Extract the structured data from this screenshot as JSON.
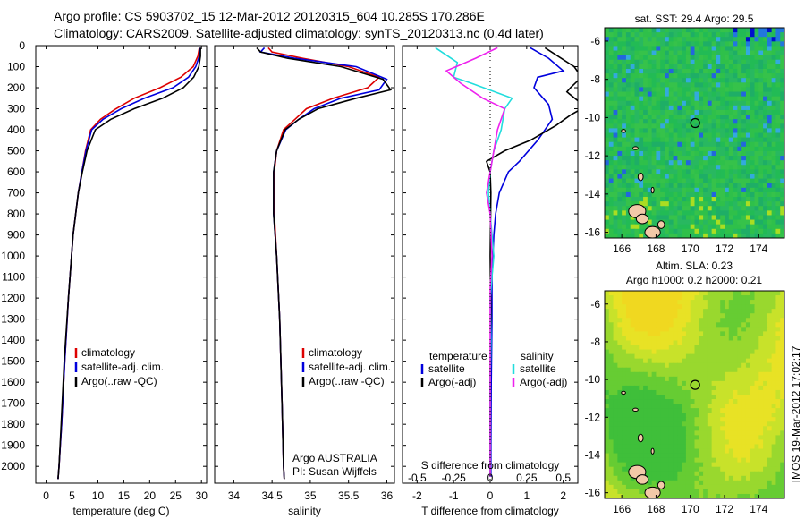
{
  "header": {
    "line1": "Argo profile: CS 5903702_15 12-Mar-2012 20120315_604 10.285S 170.286E",
    "line2": "Climatology: CARS2009. Satellite-adjusted climatology: synTS_20120313.nc (0.4d later)"
  },
  "colors": {
    "climatology": "#dd0000",
    "satellite": "#0000dd",
    "argo": "#000000",
    "salinity_satellite": "#22dddd",
    "salinity_argo": "#ee22ee"
  },
  "depth_axis": {
    "ylim": [
      0,
      2080
    ],
    "ticks": [
      "0",
      "100",
      "200",
      "300",
      "400",
      "500",
      "600",
      "700",
      "800",
      "900",
      "1000",
      "1100",
      "1200",
      "1300",
      "1400",
      "1500",
      "1600",
      "1700",
      "1800",
      "1900",
      "2000"
    ]
  },
  "chart_data": [
    {
      "type": "line",
      "name": "temperature",
      "xlabel": "temperature (deg C)",
      "xlim": [
        -2,
        31
      ],
      "xticks": [
        0,
        5,
        10,
        15,
        20,
        25,
        30
      ],
      "ylim": [
        0,
        2080
      ],
      "legend_position": "bottom-center",
      "series": [
        {
          "name": "climatology",
          "color_key": "climatology",
          "x": [
            29.6,
            29.3,
            28.4,
            26.0,
            22.0,
            17.0,
            13.5,
            10.5,
            8.6,
            7.6,
            6.9,
            6.2,
            5.2,
            4.3,
            3.6,
            3.0,
            2.5,
            2.3
          ],
          "y": [
            10,
            50,
            100,
            150,
            200,
            250,
            300,
            350,
            400,
            500,
            600,
            700,
            900,
            1200,
            1500,
            1800,
            2000,
            2060
          ]
        },
        {
          "name": "satellite-adj. clim.",
          "color_key": "satellite",
          "x": [
            29.8,
            29.6,
            28.9,
            27.5,
            24.5,
            19.0,
            14.5,
            11.0,
            8.8,
            7.7,
            6.9,
            6.2,
            5.2,
            4.3,
            3.6,
            3.0,
            2.5,
            2.3
          ],
          "y": [
            10,
            50,
            100,
            150,
            200,
            250,
            300,
            350,
            400,
            500,
            600,
            700,
            900,
            1200,
            1500,
            1800,
            2000,
            2060
          ]
        },
        {
          "name": "Argo(..raw -QC)",
          "color_key": "argo",
          "x": [
            29.8,
            29.8,
            29.5,
            28.5,
            26.5,
            22.5,
            17.0,
            12.5,
            9.5,
            7.9,
            7.0,
            6.2,
            5.2,
            4.3,
            3.5,
            2.9,
            2.5,
            2.3
          ],
          "y": [
            10,
            50,
            100,
            150,
            200,
            250,
            300,
            350,
            400,
            500,
            600,
            700,
            900,
            1200,
            1500,
            1800,
            2000,
            2060
          ]
        }
      ]
    },
    {
      "type": "line",
      "name": "salinity",
      "xlabel": "salinity",
      "xlim": [
        33.75,
        36.1
      ],
      "xticks": [
        34,
        34.5,
        35,
        35.5,
        36
      ],
      "ylim": [
        0,
        2080
      ],
      "legend_position": "bottom-center",
      "series": [
        {
          "name": "climatology",
          "color_key": "climatology",
          "x": [
            34.45,
            34.5,
            34.9,
            35.5,
            35.9,
            35.75,
            35.3,
            34.95,
            34.8,
            34.65,
            34.56,
            34.53,
            34.53,
            34.56,
            34.6,
            34.63,
            34.65,
            34.66
          ],
          "y": [
            10,
            30,
            60,
            100,
            150,
            200,
            250,
            300,
            350,
            400,
            500,
            600,
            800,
            1000,
            1300,
            1700,
            2000,
            2060
          ]
        },
        {
          "name": "satellite-adj. clim.",
          "color_key": "satellite",
          "x": [
            34.4,
            34.35,
            34.8,
            35.6,
            36.0,
            35.9,
            35.4,
            35.05,
            34.85,
            34.68,
            34.56,
            34.52,
            34.52,
            34.56,
            34.6,
            34.63,
            34.65,
            34.66
          ],
          "y": [
            10,
            30,
            60,
            100,
            160,
            210,
            250,
            300,
            350,
            400,
            500,
            600,
            800,
            1000,
            1300,
            1700,
            2000,
            2060
          ]
        },
        {
          "name": "Argo(..raw -QC)",
          "color_key": "argo",
          "x": [
            34.3,
            34.35,
            34.7,
            35.4,
            35.95,
            36.05,
            35.6,
            35.1,
            34.85,
            34.67,
            34.56,
            34.52,
            34.52,
            34.56,
            34.6,
            34.63,
            34.65,
            34.66
          ],
          "y": [
            10,
            30,
            60,
            100,
            160,
            210,
            250,
            300,
            350,
            400,
            500,
            600,
            800,
            1000,
            1300,
            1700,
            2000,
            2060
          ]
        }
      ],
      "annotation": [
        "Argo AUSTRALIA",
        "PI: Susan Wijffels"
      ]
    },
    {
      "type": "line",
      "name": "difference",
      "xlabel_top": "S difference from climatology",
      "xlabel_bottom": "T difference from climatology",
      "xlim": [
        -2.4,
        2.4
      ],
      "xticks_bottom": [
        -2,
        -1,
        0,
        1,
        2
      ],
      "xticks_top": [
        -0.5,
        -0.25,
        0,
        0.25,
        0.5
      ],
      "xticks_top_labels": [
        "-0.5",
        "-0.25",
        "0",
        "0.25",
        "0.5"
      ],
      "ylim": [
        0,
        2080
      ],
      "legend_headers": [
        "temperature",
        "salinity"
      ],
      "series": [
        {
          "name": "satellite",
          "group": "temperature",
          "color_key": "satellite",
          "x": [
            1.1,
            1.6,
            2.0,
            1.3,
            1.2,
            1.6,
            1.7,
            1.3,
            0.8,
            0.5,
            0.25,
            0.15,
            0.1,
            0.05,
            0.05,
            0.03,
            0.02,
            0.02
          ],
          "y": [
            10,
            60,
            120,
            150,
            200,
            280,
            350,
            450,
            550,
            600,
            700,
            800,
            900,
            1100,
            1300,
            1600,
            1900,
            2050
          ]
        },
        {
          "name": "Argo(-adj)",
          "group": "temperature",
          "color_key": "argo",
          "x": [
            1.5,
            2.3,
            2.5,
            2.2,
            2.1,
            2.6,
            2.2,
            1.8,
            1.1,
            0.4,
            -0.1,
            0.0,
            0.02,
            0.0,
            0.02,
            0.0,
            0.0,
            0.0
          ],
          "y": [
            10,
            100,
            150,
            200,
            220,
            290,
            330,
            380,
            450,
            500,
            550,
            600,
            700,
            1000,
            1300,
            1600,
            1900,
            2050
          ]
        },
        {
          "name": "satellite",
          "group": "salinity",
          "color_key": "salinity_satellite",
          "x": [
            -1.5,
            -0.9,
            -1.0,
            -0.5,
            0.6,
            0.4,
            0.3,
            0.1,
            0.0,
            -0.05,
            0.0,
            0.1,
            0.05,
            0.0,
            0.02,
            0.0,
            0.0,
            0.0
          ],
          "y": [
            10,
            80,
            150,
            180,
            250,
            300,
            400,
            500,
            600,
            700,
            800,
            1000,
            1100,
            1200,
            1400,
            1600,
            1900,
            2050
          ]
        },
        {
          "name": "Argo(-adj)",
          "group": "salinity",
          "color_key": "salinity_argo",
          "x": [
            0.2,
            -0.4,
            -1.2,
            -0.8,
            -0.2,
            0.4,
            0.2,
            0.1,
            0.0,
            -0.1,
            0.0,
            0.05,
            0.0,
            0.0,
            0.0,
            0.0,
            0.0,
            0.0
          ],
          "y": [
            10,
            60,
            120,
            180,
            250,
            300,
            400,
            500,
            600,
            700,
            800,
            1000,
            1150,
            1300,
            1500,
            1700,
            1900,
            2050
          ]
        }
      ]
    },
    {
      "type": "heatmap",
      "name": "sst-map",
      "title": "sat. SST: 29.4  Argo: 29.5",
      "xlim": [
        165,
        175.5
      ],
      "ylim": [
        -16.3,
        -5.3
      ],
      "xticks": [
        166,
        168,
        170,
        172,
        174
      ],
      "yticks": [
        -6,
        -8,
        -10,
        -12,
        -14,
        -16
      ],
      "marker": {
        "lon": 170.286,
        "lat": -10.285
      }
    },
    {
      "type": "heatmap",
      "name": "sla-map",
      "title_line1": "Altim. SLA: 0.23",
      "title_line2": "Argo h1000: 0.2  h2000: 0.21",
      "xlim": [
        165,
        175.5
      ],
      "ylim": [
        -16.3,
        -5.3
      ],
      "xticks": [
        166,
        168,
        170,
        172,
        174
      ],
      "yticks": [
        -6,
        -8,
        -10,
        -12,
        -14,
        -16
      ],
      "marker": {
        "lon": 170.286,
        "lat": -10.285
      }
    }
  ],
  "footer": {
    "stamp": "IMOS 19-Mar-2012 17:02:17"
  }
}
